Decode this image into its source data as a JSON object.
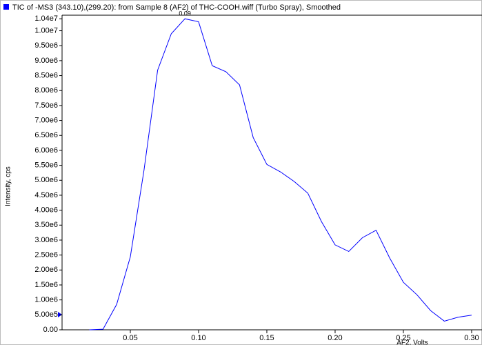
{
  "chart_data": {
    "type": "line",
    "title": "TIC of -MS3 (343.10),(299.20): from Sample 8 (AF2) of THC-COOH.wiff (Turbo Spray), Smoothed",
    "x_label": "AF2, Volts",
    "y_label": "Intensity, cps",
    "peak_label": "0.09",
    "x": [
      0.02,
      0.03,
      0.04,
      0.05,
      0.06,
      0.07,
      0.08,
      0.09,
      0.1,
      0.11,
      0.12,
      0.13,
      0.14,
      0.15,
      0.16,
      0.17,
      0.18,
      0.19,
      0.2,
      0.21,
      0.22,
      0.23,
      0.24,
      0.25,
      0.26,
      0.27,
      0.28,
      0.29,
      0.3
    ],
    "series": [
      {
        "name": "TIC",
        "color": "#0000ff",
        "values": [
          0,
          20000,
          850000,
          2440000,
          5330000,
          8680000,
          9900000,
          10400000,
          10300000,
          8830000,
          8630000,
          8190000,
          6430000,
          5530000,
          5280000,
          4960000,
          4570000,
          3620000,
          2840000,
          2620000,
          3080000,
          3330000,
          2400000,
          1590000,
          1170000,
          640000,
          290000,
          420000,
          490000
        ]
      }
    ],
    "xlim": [
      0,
      0.3076
    ],
    "ylim": [
      0,
      10520000
    ],
    "xticks": [
      0.05,
      {
        "value": 0.1,
        "label": "0.10"
      },
      0.15,
      {
        "value": 0.2,
        "label": "0.20"
      },
      0.25,
      {
        "value": 0.3,
        "label": "0.30"
      }
    ],
    "yticks": [
      {
        "value": 0,
        "label": "0.00"
      },
      {
        "value": 500000,
        "label": "5.00e5"
      },
      {
        "value": 1000000,
        "label": "1.00e6"
      },
      {
        "value": 1500000,
        "label": "1.50e6"
      },
      {
        "value": 2000000,
        "label": "2.00e6"
      },
      {
        "value": 2500000,
        "label": "2.50e6"
      },
      {
        "value": 3000000,
        "label": "3.00e6"
      },
      {
        "value": 3500000,
        "label": "3.50e6"
      },
      {
        "value": 4000000,
        "label": "4.00e6"
      },
      {
        "value": 4500000,
        "label": "4.50e6"
      },
      {
        "value": 5000000,
        "label": "5.00e6"
      },
      {
        "value": 5500000,
        "label": "5.50e6"
      },
      {
        "value": 6000000,
        "label": "6.00e6"
      },
      {
        "value": 6500000,
        "label": "6.50e6"
      },
      {
        "value": 7000000,
        "label": "7.00e6"
      },
      {
        "value": 7500000,
        "label": "7.50e6"
      },
      {
        "value": 8000000,
        "label": "8.00e6"
      },
      {
        "value": 8500000,
        "label": "8.50e6"
      },
      {
        "value": 9000000,
        "label": "9.00e6"
      },
      {
        "value": 9500000,
        "label": "9.50e6"
      },
      {
        "value": 10000000,
        "label": "1.00e7"
      },
      {
        "value": 10400000,
        "label": "1.04e7"
      }
    ],
    "grid": false
  }
}
